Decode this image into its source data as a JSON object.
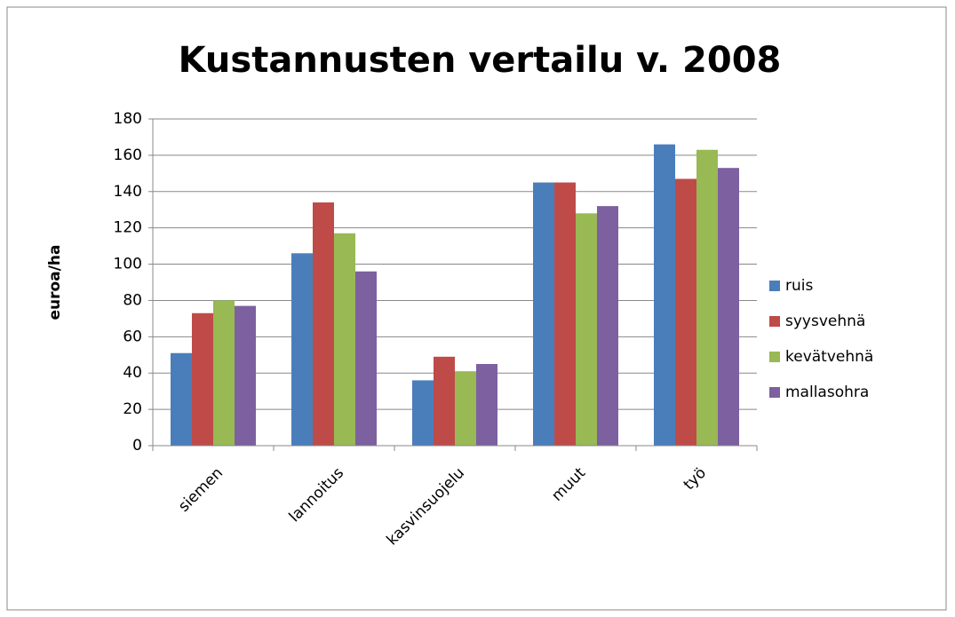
{
  "chart_data": {
    "type": "bar",
    "title": "Kustannusten vertailu v. 2008",
    "y_axis_label": "euroa/ha",
    "categories": [
      "siemen",
      "lannoitus",
      "kasvinsuojelu",
      "muut",
      "työ"
    ],
    "series": [
      {
        "name": "ruis",
        "color": "#4a7ebb",
        "values": [
          51,
          106,
          36,
          145,
          166
        ]
      },
      {
        "name": "syysvehnä",
        "color": "#be4b48",
        "values": [
          73,
          134,
          49,
          145,
          147
        ]
      },
      {
        "name": "kevätvehnä",
        "color": "#98b954",
        "values": [
          80,
          117,
          41,
          128,
          163
        ]
      },
      {
        "name": "mallasohra",
        "color": "#7d60a0",
        "values": [
          77,
          96,
          45,
          132,
          153
        ]
      }
    ],
    "ylim": [
      0,
      180
    ],
    "yticks": [
      0,
      20,
      40,
      60,
      80,
      100,
      120,
      140,
      160,
      180
    ],
    "grid": true,
    "legend": "right"
  }
}
